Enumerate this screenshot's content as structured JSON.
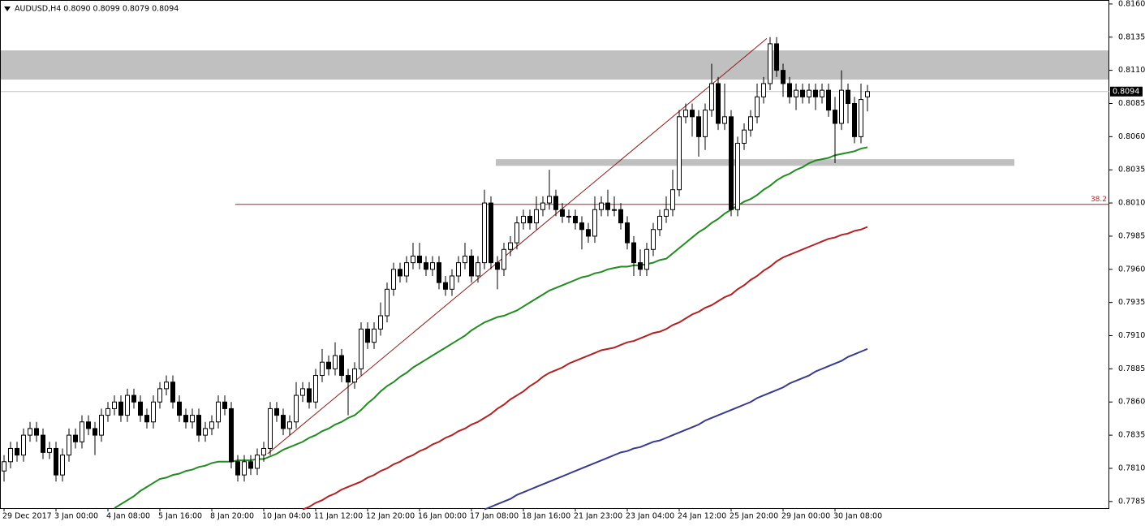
{
  "chart_data": {
    "type": "candlestick",
    "title": "AUDUSD,H4  0.8090 0.8099 0.8079 0.8094",
    "categories": [
      "29 Dec 2017",
      null,
      null,
      null,
      null,
      null,
      null,
      null,
      "3 Jan 00:00",
      null,
      null,
      null,
      null,
      null,
      null,
      null,
      "4 Jan 08:00",
      null,
      null,
      null,
      null,
      null,
      null,
      null,
      "5 Jan 16:00",
      null,
      null,
      null,
      null,
      null,
      null,
      null,
      "8 Jan 20:00",
      null,
      null,
      null,
      null,
      null,
      null,
      null,
      "10 Jan 04:00",
      null,
      null,
      null,
      null,
      null,
      null,
      null,
      "11 Jan 12:00",
      null,
      null,
      null,
      null,
      null,
      null,
      null,
      "12 Jan 20:00",
      null,
      null,
      null,
      null,
      null,
      null,
      null,
      "16 Jan 00:00",
      null,
      null,
      null,
      null,
      null,
      null,
      null,
      "17 Jan 08:00",
      null,
      null,
      null,
      null,
      null,
      null,
      null,
      "18 Jan 16:00",
      null,
      null,
      null,
      null,
      null,
      null,
      null,
      "21 Jan 23:00",
      null,
      null,
      null,
      null,
      null,
      null,
      null,
      "23 Jan 04:00",
      null,
      null,
      null,
      null,
      null,
      null,
      null,
      "24 Jan 12:00",
      null,
      null,
      null,
      null,
      null,
      null,
      null,
      "25 Jan 20:00",
      null,
      null,
      null,
      null,
      null,
      null,
      null,
      "29 Jan 00:00",
      null,
      null,
      null,
      null,
      null,
      null,
      null,
      "30 Jan 08:00",
      null,
      null,
      null,
      null,
      null
    ],
    "open": [
      0.7808,
      0.7815,
      0.7825,
      0.782,
      0.7835,
      0.784,
      0.7835,
      0.7822,
      0.7825,
      0.7805,
      0.782,
      0.7835,
      0.783,
      0.7845,
      0.784,
      0.7835,
      0.785,
      0.7855,
      0.786,
      0.785,
      0.7865,
      0.786,
      0.785,
      0.7845,
      0.786,
      0.787,
      0.7875,
      0.786,
      0.785,
      0.7845,
      0.785,
      0.7835,
      0.784,
      0.7845,
      0.786,
      0.7855,
      0.7815,
      0.7805,
      0.7815,
      0.781,
      0.782,
      0.7825,
      0.7855,
      0.785,
      0.784,
      0.7845,
      0.7865,
      0.787,
      0.786,
      0.788,
      0.789,
      0.7885,
      0.7895,
      0.788,
      0.7875,
      0.7885,
      0.7915,
      0.7905,
      0.7915,
      0.7925,
      0.7945,
      0.796,
      0.7955,
      0.7965,
      0.797,
      0.7965,
      0.796,
      0.7965,
      0.795,
      0.7945,
      0.7955,
      0.7965,
      0.797,
      0.7955,
      0.7965,
      0.801,
      0.7965,
      0.796,
      0.7975,
      0.798,
      0.7995,
      0.8,
      0.7995,
      0.8005,
      0.801,
      0.8015,
      0.8005,
      0.8,
      0.8,
      0.7995,
      0.799,
      0.7985,
      0.8005,
      0.801,
      0.8005,
      0.8005,
      0.7995,
      0.798,
      0.7965,
      0.796,
      0.7975,
      0.799,
      0.8,
      0.8005,
      0.802,
      0.8075,
      0.808,
      0.8075,
      0.806,
      0.808,
      0.81,
      0.807,
      0.8075,
      0.8005,
      0.8055,
      0.8065,
      0.8075,
      0.809,
      0.81,
      0.813,
      0.811,
      0.81,
      0.809,
      0.8095,
      0.809,
      0.8095,
      0.809,
      0.8095,
      0.808,
      0.807,
      0.8095,
      0.8085,
      0.806,
      0.809
    ],
    "high": [
      0.782,
      0.783,
      0.783,
      0.784,
      0.7845,
      0.7845,
      0.784,
      0.783,
      0.783,
      0.7825,
      0.784,
      0.784,
      0.785,
      0.785,
      0.7845,
      0.7855,
      0.786,
      0.7865,
      0.7865,
      0.787,
      0.787,
      0.7865,
      0.7855,
      0.7865,
      0.7875,
      0.788,
      0.788,
      0.7865,
      0.7855,
      0.7855,
      0.7855,
      0.7845,
      0.785,
      0.7865,
      0.7865,
      0.786,
      0.782,
      0.782,
      0.782,
      0.7825,
      0.783,
      0.786,
      0.786,
      0.7855,
      0.785,
      0.7875,
      0.7875,
      0.7875,
      0.7885,
      0.79,
      0.7895,
      0.7905,
      0.79,
      0.7885,
      0.789,
      0.792,
      0.792,
      0.792,
      0.7935,
      0.795,
      0.7965,
      0.7965,
      0.797,
      0.798,
      0.798,
      0.797,
      0.797,
      0.797,
      0.7955,
      0.796,
      0.797,
      0.798,
      0.7975,
      0.797,
      0.802,
      0.8015,
      0.797,
      0.798,
      0.7985,
      0.8,
      0.8005,
      0.8005,
      0.8015,
      0.8015,
      0.8035,
      0.802,
      0.801,
      0.8005,
      0.8005,
      0.8,
      0.7995,
      0.8015,
      0.8015,
      0.802,
      0.8015,
      0.801,
      0.8,
      0.7985,
      0.7975,
      0.798,
      0.7995,
      0.8005,
      0.8015,
      0.8035,
      0.808,
      0.8085,
      0.8085,
      0.808,
      0.8085,
      0.8115,
      0.8105,
      0.81,
      0.808,
      0.806,
      0.807,
      0.808,
      0.81,
      0.8105,
      0.8135,
      0.8135,
      0.8115,
      0.8105,
      0.81,
      0.81,
      0.81,
      0.81,
      0.81,
      0.81,
      0.809,
      0.811,
      0.81,
      0.809,
      0.81,
      0.8099
    ],
    "low": [
      0.78,
      0.781,
      0.7815,
      0.7815,
      0.783,
      0.783,
      0.7817,
      0.7817,
      0.78,
      0.78,
      0.7815,
      0.7825,
      0.7825,
      0.7835,
      0.782,
      0.783,
      0.7845,
      0.785,
      0.7845,
      0.7845,
      0.7855,
      0.7845,
      0.784,
      0.784,
      0.7855,
      0.7865,
      0.7855,
      0.7845,
      0.784,
      0.784,
      0.783,
      0.783,
      0.7835,
      0.784,
      0.785,
      0.781,
      0.78,
      0.78,
      0.7805,
      0.7805,
      0.7815,
      0.782,
      0.7845,
      0.7835,
      0.7835,
      0.784,
      0.786,
      0.7855,
      0.7855,
      0.7875,
      0.788,
      0.788,
      0.7875,
      0.785,
      0.787,
      0.788,
      0.79,
      0.79,
      0.791,
      0.792,
      0.794,
      0.795,
      0.795,
      0.796,
      0.796,
      0.7955,
      0.7955,
      0.7945,
      0.794,
      0.794,
      0.795,
      0.796,
      0.795,
      0.795,
      0.796,
      0.796,
      0.7945,
      0.7955,
      0.797,
      0.7975,
      0.799,
      0.799,
      0.799,
      0.8,
      0.8005,
      0.8,
      0.7995,
      0.7995,
      0.799,
      0.7975,
      0.798,
      0.798,
      0.8,
      0.8,
      0.8,
      0.799,
      0.7975,
      0.7955,
      0.7955,
      0.7955,
      0.797,
      0.7985,
      0.7995,
      0.8,
      0.8015,
      0.807,
      0.806,
      0.8045,
      0.805,
      0.8075,
      0.8065,
      0.8065,
      0.8,
      0.8,
      0.805,
      0.806,
      0.807,
      0.8085,
      0.8095,
      0.8105,
      0.809,
      0.8085,
      0.808,
      0.8085,
      0.8085,
      0.808,
      0.8085,
      0.8075,
      0.804,
      0.8065,
      0.807,
      0.8055,
      0.8055,
      0.8079
    ],
    "close": [
      0.7815,
      0.7825,
      0.782,
      0.7835,
      0.784,
      0.7835,
      0.7822,
      0.7825,
      0.7805,
      0.782,
      0.7835,
      0.783,
      0.7845,
      0.784,
      0.7835,
      0.785,
      0.7855,
      0.786,
      0.785,
      0.7865,
      0.786,
      0.785,
      0.7845,
      0.786,
      0.787,
      0.7875,
      0.786,
      0.785,
      0.7845,
      0.785,
      0.7835,
      0.784,
      0.7845,
      0.786,
      0.7855,
      0.7815,
      0.7805,
      0.7815,
      0.781,
      0.782,
      0.7825,
      0.7855,
      0.785,
      0.784,
      0.7845,
      0.7865,
      0.787,
      0.786,
      0.788,
      0.789,
      0.7885,
      0.7895,
      0.788,
      0.7875,
      0.7885,
      0.7915,
      0.7905,
      0.7915,
      0.7925,
      0.7945,
      0.796,
      0.7955,
      0.7965,
      0.797,
      0.7965,
      0.796,
      0.7965,
      0.795,
      0.7945,
      0.7955,
      0.7965,
      0.797,
      0.7955,
      0.7965,
      0.801,
      0.7965,
      0.796,
      0.7975,
      0.798,
      0.7995,
      0.8,
      0.7995,
      0.8005,
      0.801,
      0.8015,
      0.8005,
      0.8,
      0.8,
      0.7995,
      0.799,
      0.7985,
      0.8005,
      0.801,
      0.8005,
      0.8005,
      0.7995,
      0.798,
      0.7965,
      0.796,
      0.7975,
      0.799,
      0.8,
      0.8005,
      0.802,
      0.8075,
      0.808,
      0.8075,
      0.806,
      0.808,
      0.81,
      0.807,
      0.8075,
      0.8005,
      0.8055,
      0.8065,
      0.8075,
      0.809,
      0.81,
      0.813,
      0.811,
      0.81,
      0.809,
      0.8095,
      0.809,
      0.8095,
      0.809,
      0.8095,
      0.808,
      0.807,
      0.8095,
      0.8085,
      0.806,
      0.8088,
      0.8094
    ],
    "series": [
      {
        "color": "#228b22",
        "values": [
          null,
          null,
          null,
          null,
          null,
          null,
          null,
          null,
          null,
          null,
          null,
          null,
          null,
          null,
          null,
          null,
          null,
          0.778,
          0.7783,
          0.7786,
          0.7789,
          0.7793,
          0.7796,
          0.7799,
          0.7802,
          0.7803,
          0.7805,
          0.7806,
          0.7808,
          0.7809,
          0.7811,
          0.7812,
          0.7814,
          0.7815,
          0.7815,
          0.7815,
          0.7816,
          0.7816,
          0.7816,
          0.7817,
          0.7817,
          0.7819,
          0.7821,
          0.7824,
          0.7826,
          0.7828,
          0.783,
          0.7833,
          0.7835,
          0.7838,
          0.784,
          0.7843,
          0.7845,
          0.7848,
          0.785,
          0.7854,
          0.7859,
          0.7863,
          0.7868,
          0.7872,
          0.7875,
          0.7879,
          0.7882,
          0.7886,
          0.7889,
          0.7892,
          0.7895,
          0.7898,
          0.7901,
          0.7904,
          0.7907,
          0.791,
          0.7914,
          0.7917,
          0.792,
          0.7922,
          0.7924,
          0.7925,
          0.7927,
          0.7929,
          0.7932,
          0.7935,
          0.7938,
          0.7941,
          0.7944,
          0.7946,
          0.7948,
          0.795,
          0.7952,
          0.7954,
          0.7955,
          0.7957,
          0.7958,
          0.796,
          0.7961,
          0.7962,
          0.7962,
          0.7963,
          0.7963,
          0.7964,
          0.7965,
          0.7967,
          0.7968,
          0.7972,
          0.7976,
          0.798,
          0.7984,
          0.7988,
          0.7991,
          0.7995,
          0.7998,
          0.8002,
          0.8005,
          0.8008,
          0.8011,
          0.8013,
          0.8016,
          0.802,
          0.8023,
          0.8027,
          0.803,
          0.8032,
          0.8035,
          0.8037,
          0.804,
          0.8042,
          0.8043,
          0.8044,
          0.8046,
          0.8047,
          0.8048,
          0.8049,
          0.8051,
          0.8052
        ]
      },
      {
        "color": "#b22222",
        "values": [
          null,
          null,
          null,
          null,
          null,
          null,
          null,
          null,
          null,
          null,
          null,
          null,
          null,
          null,
          null,
          null,
          null,
          null,
          null,
          null,
          null,
          null,
          null,
          null,
          null,
          null,
          null,
          null,
          null,
          null,
          null,
          null,
          null,
          null,
          null,
          null,
          null,
          null,
          null,
          null,
          null,
          null,
          null,
          null,
          null,
          null,
          0.7779,
          0.7781,
          0.7784,
          0.7786,
          0.7789,
          0.7791,
          0.7794,
          0.7796,
          0.7798,
          0.78,
          0.7803,
          0.7805,
          0.7808,
          0.781,
          0.7813,
          0.7815,
          0.7818,
          0.782,
          0.7823,
          0.7825,
          0.7828,
          0.783,
          0.7833,
          0.7835,
          0.7838,
          0.784,
          0.7843,
          0.7845,
          0.7848,
          0.7851,
          0.7855,
          0.7858,
          0.7862,
          0.7865,
          0.7868,
          0.7872,
          0.7875,
          0.7879,
          0.7882,
          0.7884,
          0.7886,
          0.7889,
          0.7891,
          0.7893,
          0.7895,
          0.7897,
          0.7899,
          0.79,
          0.7901,
          0.7903,
          0.7905,
          0.7906,
          0.7908,
          0.791,
          0.7912,
          0.7913,
          0.7915,
          0.7918,
          0.792,
          0.7923,
          0.7926,
          0.7928,
          0.7931,
          0.7933,
          0.7936,
          0.7939,
          0.7941,
          0.7945,
          0.7948,
          0.7952,
          0.7955,
          0.7959,
          0.7962,
          0.7966,
          0.7969,
          0.7971,
          0.7973,
          0.7975,
          0.7977,
          0.7979,
          0.7981,
          0.7983,
          0.7984,
          0.7986,
          0.7987,
          0.7989,
          0.799,
          0.7992
        ]
      },
      {
        "color": "#3a3a8c",
        "values": [
          null,
          null,
          null,
          null,
          null,
          null,
          null,
          null,
          null,
          null,
          null,
          null,
          null,
          null,
          null,
          null,
          null,
          null,
          null,
          null,
          null,
          null,
          null,
          null,
          null,
          null,
          null,
          null,
          null,
          null,
          null,
          null,
          null,
          null,
          null,
          null,
          null,
          null,
          null,
          null,
          null,
          null,
          null,
          null,
          null,
          null,
          null,
          null,
          null,
          null,
          null,
          null,
          null,
          null,
          null,
          null,
          null,
          null,
          null,
          null,
          null,
          null,
          null,
          null,
          null,
          null,
          null,
          null,
          null,
          null,
          null,
          null,
          null,
          null,
          0.7779,
          0.7781,
          0.7783,
          0.7785,
          0.7787,
          0.779,
          0.7792,
          0.7794,
          0.7796,
          0.7798,
          0.78,
          0.7802,
          0.7804,
          0.7806,
          0.7808,
          0.781,
          0.7812,
          0.7814,
          0.7816,
          0.7818,
          0.782,
          0.7822,
          0.7823,
          0.7825,
          0.7826,
          0.7828,
          0.783,
          0.7831,
          0.7833,
          0.7835,
          0.7837,
          0.7839,
          0.7841,
          0.7843,
          0.7846,
          0.7848,
          0.785,
          0.7852,
          0.7854,
          0.7856,
          0.7858,
          0.786,
          0.7863,
          0.7865,
          0.7867,
          0.7869,
          0.7871,
          0.7874,
          0.7876,
          0.7878,
          0.788,
          0.7883,
          0.7885,
          0.7887,
          0.7889,
          0.7891,
          0.7894,
          0.7896,
          0.7898,
          0.79
        ]
      }
    ],
    "ylim": [
      0.778,
      0.8163
    ],
    "yticks": [
      {
        "value": 0.816,
        "label": "0.8160"
      },
      {
        "value": 0.8135,
        "label": "0.8135"
      },
      {
        "value": 0.811,
        "label": "0.8110"
      },
      {
        "value": 0.8085,
        "label": "0.8085"
      },
      {
        "value": 0.806,
        "label": "0.8060"
      },
      {
        "value": 0.8035,
        "label": "0.8035"
      },
      {
        "value": 0.801,
        "label": "0.8010"
      },
      {
        "value": 0.7985,
        "label": "0.7985"
      },
      {
        "value": 0.796,
        "label": "0.7960"
      },
      {
        "value": 0.7935,
        "label": "0.7935"
      },
      {
        "value": 0.791,
        "label": "0.7910"
      },
      {
        "value": 0.7885,
        "label": "0.7885"
      },
      {
        "value": 0.786,
        "label": "0.7860"
      },
      {
        "value": 0.7835,
        "label": "0.7835"
      },
      {
        "value": 0.781,
        "label": "0.7810"
      },
      {
        "value": 0.7785,
        "label": "0.7785"
      }
    ],
    "zones": [
      {
        "from": 0.8103,
        "to": 0.8125,
        "color": "#c0c0c0"
      },
      {
        "from": 0.8038,
        "to": 0.8043,
        "color": "#c0c0c0"
      }
    ],
    "fib": {
      "value": 0.8009,
      "label": "38.2",
      "color": "#b22222"
    },
    "trendline": {
      "from": 0.7821,
      "to": 0.8134,
      "color": "#8b1a1a"
    },
    "price_line_color": "#c0c0c0"
  }
}
